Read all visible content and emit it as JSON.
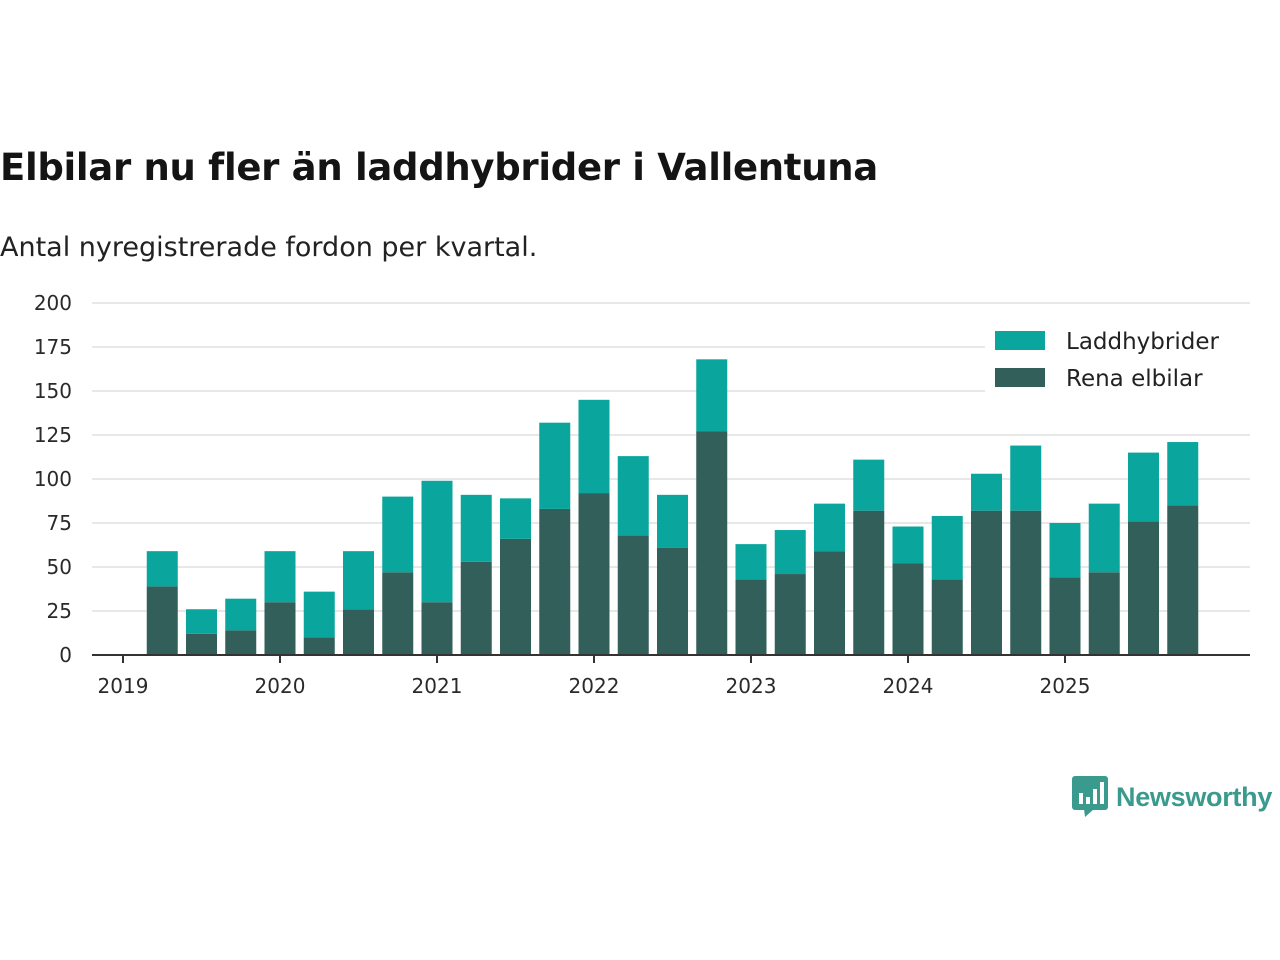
{
  "title": "Elbilar nu fler än laddhybrider i Vallentuna",
  "subtitle": "Antal nyregistrerade fordon per kvartal.",
  "brand": {
    "name": "Newsworthy",
    "color": "#3a9a8e",
    "logo_icon": "bar-chart-speech-bubble-icon"
  },
  "chart_data": {
    "type": "bar",
    "stacked": true,
    "categories": [
      "2019 Q1",
      "2019 Q2",
      "2019 Q3",
      "2019 Q4",
      "2020 Q1",
      "2020 Q2",
      "2020 Q3",
      "2020 Q4",
      "2021 Q1",
      "2021 Q2",
      "2021 Q3",
      "2021 Q4",
      "2022 Q1",
      "2022 Q2",
      "2022 Q3",
      "2022 Q4",
      "2023 Q1",
      "2023 Q2",
      "2023 Q3",
      "2023 Q4",
      "2024 Q1",
      "2024 Q2",
      "2024 Q3",
      "2024 Q4",
      "2025 Q1",
      "2025 Q2",
      "2025 Q3"
    ],
    "series": [
      {
        "name": "Rena elbilar",
        "color": "#335f5a",
        "values": [
          39,
          12,
          14,
          30,
          10,
          26,
          47,
          30,
          53,
          66,
          83,
          92,
          68,
          61,
          127,
          43,
          46,
          59,
          82,
          52,
          43,
          82,
          82,
          44,
          47,
          76,
          85
        ]
      },
      {
        "name": "Laddhybrider",
        "color": "#0aa59c",
        "values": [
          20,
          14,
          18,
          29,
          26,
          33,
          43,
          69,
          38,
          23,
          49,
          53,
          45,
          30,
          41,
          20,
          25,
          27,
          29,
          21,
          36,
          21,
          37,
          31,
          39,
          39,
          36
        ]
      }
    ],
    "legend": {
      "position": "top-right",
      "entries": [
        {
          "label": "Laddhybrider",
          "color": "#0aa59c"
        },
        {
          "label": "Rena elbilar",
          "color": "#335f5a"
        }
      ]
    },
    "xlabel": "",
    "ylabel": "",
    "ylim": [
      0,
      200
    ],
    "yticks": [
      0,
      25,
      50,
      75,
      100,
      125,
      150,
      175,
      200
    ],
    "xticks": [
      "2019",
      "2020",
      "2021",
      "2022",
      "2023",
      "2024",
      "2025"
    ],
    "grid": true
  }
}
